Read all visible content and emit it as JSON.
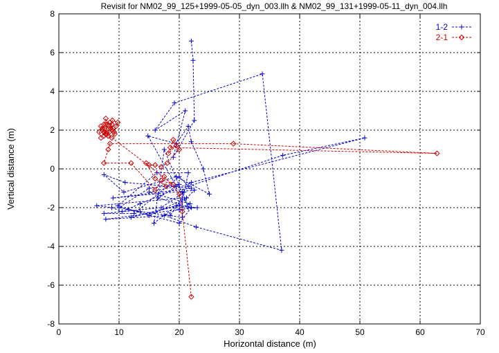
{
  "chart_data": {
    "type": "scatter",
    "title": "Revisit for NM02_99_125+1999-05-05_dyn_003.llh & NM02_99_131+1999-05-11_dyn_004.llh",
    "xlabel": "Horizontal distance (m)",
    "ylabel": "Vertical distance (m)",
    "xlim": [
      0,
      70
    ],
    "ylim": [
      -8,
      8
    ],
    "x_ticks": [
      "0",
      "10",
      "20",
      "30",
      "40",
      "50",
      "60",
      "70"
    ],
    "y_ticks": [
      "-8",
      "-6",
      "-4",
      "-2",
      "0",
      "2",
      "4",
      "6",
      "8"
    ],
    "grid": true,
    "legend_position": "top-right",
    "series": [
      {
        "name": "1-2",
        "color": "#0000cc",
        "marker": "plus",
        "line": "dashed",
        "points": [
          [
            22.0,
            6.6
          ],
          [
            22.3,
            5.6
          ],
          [
            22.5,
            2.5
          ],
          [
            19.0,
            0.6
          ],
          [
            21.0,
            3.0
          ],
          [
            16.0,
            2.0
          ],
          [
            19.2,
            3.4
          ],
          [
            33.8,
            4.9
          ],
          [
            37.0,
            -4.2
          ],
          [
            22.8,
            -3.0
          ],
          [
            17.5,
            -2.4
          ],
          [
            21.8,
            -1.8
          ],
          [
            15.0,
            -1.2
          ],
          [
            19.5,
            -0.9
          ],
          [
            14.8,
            1.7
          ],
          [
            19.5,
            1.3
          ],
          [
            21.5,
            2.2
          ],
          [
            22.0,
            1.4
          ],
          [
            24.0,
            0.0
          ],
          [
            25.0,
            -1.3
          ],
          [
            19.5,
            -0.4
          ],
          [
            10.8,
            -1.2
          ],
          [
            7.5,
            -0.3
          ],
          [
            11.0,
            -0.7
          ],
          [
            22.0,
            -1.0
          ],
          [
            9.0,
            -1.5
          ],
          [
            22.5,
            -1.1
          ],
          [
            20.0,
            -1.9
          ],
          [
            12.0,
            -2.5
          ],
          [
            19.5,
            -1.9
          ],
          [
            23.0,
            -2.0
          ],
          [
            20.0,
            -2.1
          ],
          [
            7.8,
            -2.6
          ],
          [
            18.5,
            -2.4
          ],
          [
            20.5,
            -1.5
          ],
          [
            6.3,
            -1.9
          ],
          [
            8.8,
            -2.0
          ],
          [
            10.5,
            -2.2
          ],
          [
            13.5,
            -1.8
          ],
          [
            22.0,
            -0.7
          ],
          [
            50.8,
            1.6
          ],
          [
            37.2,
            0.7
          ],
          [
            21.5,
            -0.9
          ],
          [
            20.0,
            -0.4
          ],
          [
            12.5,
            -2.3
          ],
          [
            7.5,
            -2.3
          ],
          [
            17.0,
            -2.0
          ],
          [
            20.8,
            -1.2
          ],
          [
            21.5,
            -0.2
          ],
          [
            16.3,
            -0.2
          ],
          [
            9.8,
            -1.9
          ],
          [
            15.0,
            -2.4
          ],
          [
            21.2,
            -1.5
          ],
          [
            15.8,
            -2.8
          ],
          [
            17.5,
            1.0
          ],
          [
            21.5,
            -2.0
          ],
          [
            20.5,
            -1.2
          ],
          [
            20.5,
            -2.5
          ],
          [
            13.5,
            -2.2
          ],
          [
            10.0,
            -2.0
          ],
          [
            15.0,
            -1.0
          ],
          [
            20.0,
            -0.8
          ],
          [
            16.5,
            -1.5
          ],
          [
            22.0,
            -2.0
          ],
          [
            20.0,
            -2.8
          ],
          [
            11.5,
            -2.1
          ]
        ]
      },
      {
        "name": "2-1",
        "color": "#cc0000",
        "marker": "diamond",
        "line": "dashed",
        "points": [
          [
            22.0,
            -6.6
          ],
          [
            20.5,
            -2.2
          ],
          [
            20.0,
            -1.3
          ],
          [
            17.5,
            -0.4
          ],
          [
            16.0,
            -1.1
          ],
          [
            12.0,
            0.3
          ],
          [
            7.5,
            0.3
          ],
          [
            8.2,
            1.0
          ],
          [
            8.5,
            1.3
          ],
          [
            29.0,
            1.3
          ],
          [
            62.8,
            0.8
          ],
          [
            18.5,
            1.1
          ],
          [
            19.5,
            1.2
          ],
          [
            18.2,
            0.8
          ],
          [
            19.0,
            1.5
          ],
          [
            20.0,
            1.0
          ],
          [
            18.0,
            0.3
          ],
          [
            17.0,
            0.1
          ],
          [
            16.0,
            0.2
          ],
          [
            15.0,
            0.2
          ],
          [
            14.5,
            0.3
          ],
          [
            16.0,
            -0.5
          ],
          [
            17.8,
            -0.9
          ],
          [
            17.0,
            -0.6
          ],
          [
            19.0,
            -0.8
          ],
          [
            8.0,
            1.8
          ],
          [
            7.2,
            2.0
          ],
          [
            7.5,
            2.3
          ],
          [
            7.8,
            2.6
          ],
          [
            8.3,
            2.2
          ],
          [
            8.8,
            2.0
          ],
          [
            9.2,
            1.9
          ],
          [
            9.5,
            2.2
          ],
          [
            9.8,
            2.4
          ],
          [
            8.9,
            2.5
          ],
          [
            8.6,
            2.1
          ],
          [
            8.0,
            1.9
          ],
          [
            7.6,
            2.1
          ],
          [
            7.0,
            2.2
          ],
          [
            6.7,
            1.9
          ],
          [
            7.0,
            1.6
          ],
          [
            7.5,
            1.9
          ],
          [
            8.2,
            1.7
          ],
          [
            8.8,
            1.6
          ],
          [
            9.3,
            1.8
          ],
          [
            9.0,
            2.1
          ],
          [
            8.5,
            2.4
          ],
          [
            7.8,
            2.3
          ],
          [
            7.3,
            2.1
          ],
          [
            7.7,
            1.8
          ],
          [
            8.4,
            1.9
          ],
          [
            8.8,
            2.3
          ],
          [
            8.1,
            2.3
          ],
          [
            7.5,
            1.7
          ]
        ]
      }
    ]
  }
}
